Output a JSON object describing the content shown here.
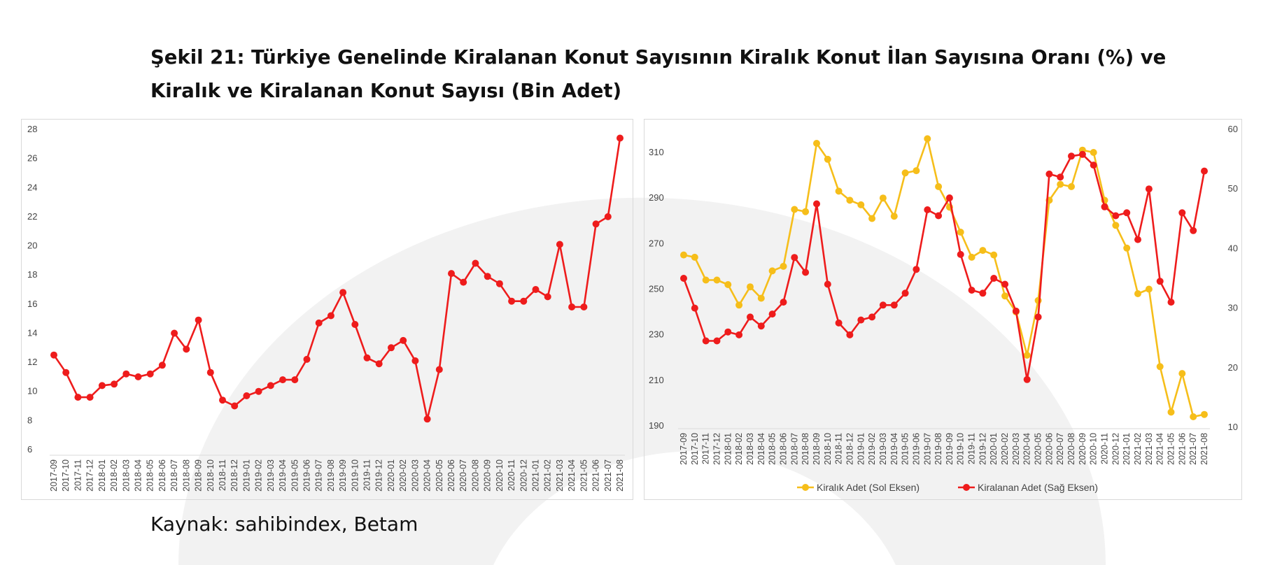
{
  "figure": {
    "title": "Şekil 21: Türkiye Genelinde Kiralanan Konut Sayısının Kiralık Konut İlan Sayısına Oranı (%) ve Kiralık ve Kiralanan Konut Sayısı (Bin Adet)",
    "source": "Kaynak: sahibindex, Betam"
  },
  "colors": {
    "red": "#ee1c1c",
    "yellow": "#f6be1a",
    "watermark": "#f2f2f2"
  },
  "chart_data": [
    {
      "type": "line",
      "title": "",
      "xlabel": "",
      "ylabel": "",
      "ylim": [
        6,
        28
      ],
      "yticks": [
        6,
        8,
        10,
        12,
        14,
        16,
        18,
        20,
        22,
        24,
        26,
        28
      ],
      "grid": false,
      "categories": [
        "2017-09",
        "2017-10",
        "2017-11",
        "2017-12",
        "2018-01",
        "2018-02",
        "2018-03",
        "2018-04",
        "2018-05",
        "2018-06",
        "2018-07",
        "2018-08",
        "2018-09",
        "2018-10",
        "2018-11",
        "2018-12",
        "2019-01",
        "2019-02",
        "2019-03",
        "2019-04",
        "2019-05",
        "2019-06",
        "2019-07",
        "2019-08",
        "2019-09",
        "2019-10",
        "2019-11",
        "2019-12",
        "2020-01",
        "2020-02",
        "2020-03",
        "2020-04",
        "2020-05",
        "2020-06",
        "2020-07",
        "2020-08",
        "2020-09",
        "2020-10",
        "2020-11",
        "2020-12",
        "2021-01",
        "2021-02",
        "2021-03",
        "2021-04",
        "2021-05",
        "2021-06",
        "2021-07",
        "2021-08"
      ],
      "series": [
        {
          "color": "#ee1c1c",
          "values": [
            12.5,
            11.3,
            9.6,
            9.6,
            10.4,
            10.5,
            11.2,
            11.0,
            11.2,
            11.8,
            14.0,
            12.9,
            14.9,
            11.3,
            9.4,
            9.0,
            9.7,
            10.0,
            10.4,
            10.8,
            10.8,
            12.2,
            14.7,
            15.2,
            16.8,
            14.6,
            12.3,
            11.9,
            13.0,
            13.5,
            12.1,
            8.1,
            11.5,
            18.1,
            17.5,
            18.8,
            17.9,
            17.4,
            16.2,
            16.2,
            17.0,
            16.5,
            20.1,
            15.8,
            15.8,
            21.5,
            22.0,
            27.4
          ]
        }
      ]
    },
    {
      "type": "line",
      "title": "",
      "xlabel": "",
      "categories": [
        "2017-09",
        "2017-10",
        "2017-11",
        "2017-12",
        "2018-01",
        "2018-02",
        "2018-03",
        "2018-04",
        "2018-05",
        "2018-06",
        "2018-07",
        "2018-08",
        "2018-09",
        "2018-10",
        "2018-11",
        "2018-12",
        "2019-01",
        "2019-02",
        "2019-03",
        "2019-04",
        "2019-05",
        "2019-06",
        "2019-07",
        "2019-08",
        "2019-09",
        "2019-10",
        "2019-11",
        "2019-12",
        "2020-01",
        "2020-02",
        "2020-03",
        "2020-04",
        "2020-05",
        "2020-06",
        "2020-07",
        "2020-08",
        "2020-09",
        "2020-10",
        "2020-11",
        "2020-12",
        "2021-01",
        "2021-02",
        "2021-03",
        "2021-04",
        "2021-05",
        "2021-06",
        "2021-07",
        "2021-08"
      ],
      "y_left": {
        "ylim": [
          190,
          320
        ],
        "yticks": [
          190,
          210,
          230,
          250,
          270,
          290,
          310
        ]
      },
      "y_right": {
        "ylim": [
          10,
          60
        ],
        "yticks": [
          10,
          20,
          30,
          40,
          50,
          60
        ]
      },
      "grid": false,
      "legend_position": "bottom",
      "series": [
        {
          "name": "Kiralık Adet (Sol Eksen)",
          "axis": "left",
          "color": "#f6be1a",
          "values": [
            265,
            264,
            254,
            254,
            252,
            243,
            251,
            246,
            258,
            260,
            285,
            284,
            314,
            307,
            293,
            289,
            287,
            281,
            290,
            282,
            301,
            302,
            316,
            295,
            286,
            275,
            264,
            267,
            265,
            247,
            240,
            221,
            245,
            289,
            296,
            295,
            311,
            310,
            289,
            278,
            268,
            248,
            250,
            216,
            196,
            213,
            194,
            195
          ]
        },
        {
          "name": "Kiralanan Adet (Sağ Eksen)",
          "axis": "right",
          "color": "#ee1c1c",
          "values": [
            35,
            30,
            24.5,
            24.5,
            26,
            25.5,
            28.5,
            27,
            29,
            31,
            38.5,
            36,
            47.5,
            34,
            27.5,
            25.5,
            28,
            28.5,
            30.5,
            30.5,
            32.5,
            36.5,
            46.5,
            45.5,
            48.5,
            39,
            33,
            32.5,
            35,
            34,
            29.5,
            18,
            28.5,
            52.5,
            52,
            55.5,
            55.8,
            54,
            47,
            45.5,
            46,
            41.5,
            50,
            34.5,
            31,
            46,
            43,
            53
          ]
        }
      ]
    }
  ]
}
